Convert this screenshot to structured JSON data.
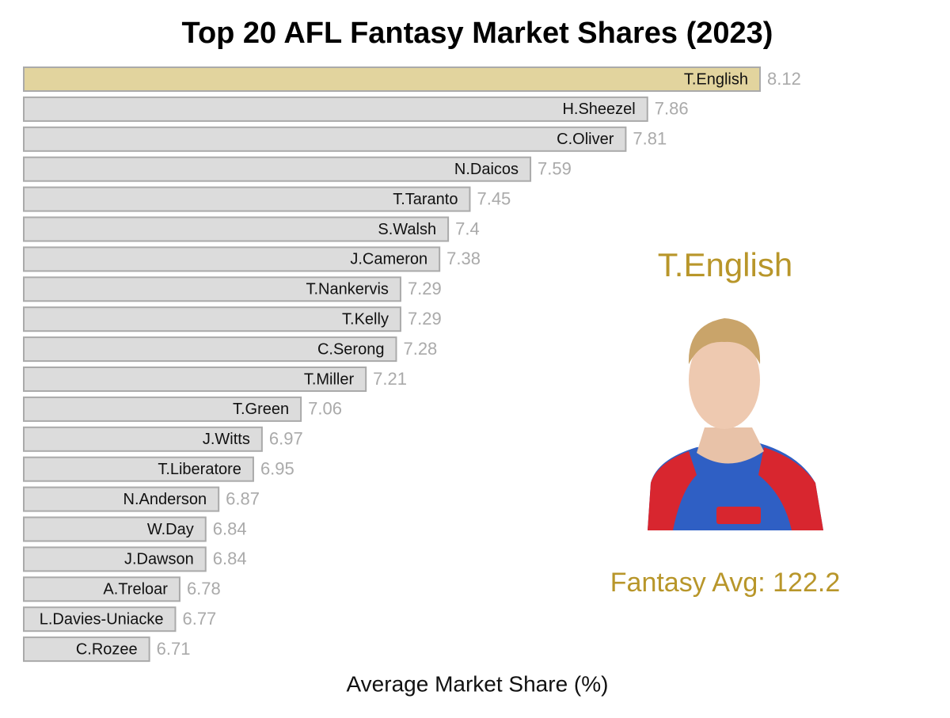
{
  "chart_data": {
    "type": "barh",
    "title": "Top 20 AFL Fantasy Market Shares (2023)",
    "xlabel": "Average Market Share (%)",
    "categories": [
      "T.English",
      "H.Sheezel",
      "C.Oliver",
      "N.Daicos",
      "T.Taranto",
      "S.Walsh",
      "J.Cameron",
      "T.Nankervis",
      "T.Kelly",
      "C.Serong",
      "T.Miller",
      "T.Green",
      "J.Witts",
      "T.Liberatore",
      "N.Anderson",
      "W.Day",
      "J.Dawson",
      "A.Treloar",
      "L.Davies-Uniacke",
      "C.Rozee"
    ],
    "values": [
      8.12,
      7.86,
      7.81,
      7.59,
      7.45,
      7.4,
      7.38,
      7.29,
      7.29,
      7.28,
      7.21,
      7.06,
      6.97,
      6.95,
      6.87,
      6.84,
      6.84,
      6.78,
      6.77,
      6.71
    ],
    "color": "#dcdcdc",
    "highlight_color": "#e2d49e",
    "highlight_index": 0,
    "xlim": [
      6.42,
      8.12
    ],
    "annotation": "Fantasy Avg: 122.2"
  }
}
